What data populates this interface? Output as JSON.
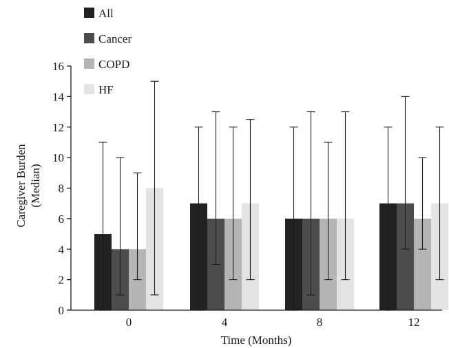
{
  "chart_data": {
    "type": "bar",
    "title": "",
    "xlabel": "Time (Months)",
    "ylabel_lines": [
      "Caregiver Burden",
      "(Median)"
    ],
    "categories": [
      "0",
      "4",
      "8",
      "12"
    ],
    "ylim": [
      0,
      16
    ],
    "yticks": [
      "0",
      "2",
      "4",
      "6",
      "8",
      "10",
      "12",
      "14",
      "16"
    ],
    "grid": false,
    "legend_position": "top-left",
    "series": [
      {
        "name": "All",
        "color": "#222222",
        "values": [
          5,
          7,
          6,
          7
        ],
        "err_low": [
          0,
          0,
          0,
          0
        ],
        "err_high": [
          11,
          12,
          12,
          12
        ]
      },
      {
        "name": "Cancer",
        "color": "#4d4d4d",
        "values": [
          4,
          6,
          6,
          7
        ],
        "err_low": [
          1,
          3,
          1,
          4
        ],
        "err_high": [
          10,
          13,
          13,
          14
        ]
      },
      {
        "name": "COPD",
        "color": "#b5b5b5",
        "values": [
          4,
          6,
          6,
          6
        ],
        "err_low": [
          2,
          2,
          2,
          4
        ],
        "err_high": [
          9,
          12,
          11,
          10
        ]
      },
      {
        "name": "HF",
        "color": "#e3e3e3",
        "values": [
          8,
          7,
          6,
          7
        ],
        "err_low": [
          1,
          2,
          2,
          2
        ],
        "err_high": [
          15,
          12.5,
          13,
          12
        ]
      }
    ]
  }
}
